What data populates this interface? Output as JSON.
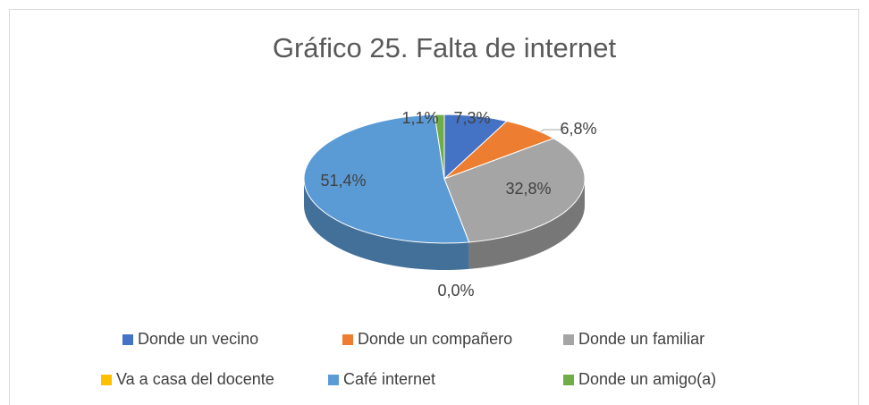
{
  "chart_data": {
    "type": "pie",
    "title": "Gráfico 25. Falta de internet",
    "categories": [
      "Donde un vecino",
      "Donde un compañero",
      "Donde un familiar",
      "Va a casa del docente",
      "Café internet",
      "Donde un amigo(a)"
    ],
    "values": [
      7.3,
      6.8,
      32.8,
      0.0,
      51.4,
      1.1
    ],
    "value_labels": [
      "7,3%",
      "6,8%",
      "32,8%",
      "0,0%",
      "51,4%",
      "1,1%"
    ],
    "colors": [
      "#4472c4",
      "#ed7d31",
      "#a5a5a5",
      "#ffc000",
      "#5b9bd5",
      "#70ad47"
    ],
    "legend": "bottom"
  }
}
